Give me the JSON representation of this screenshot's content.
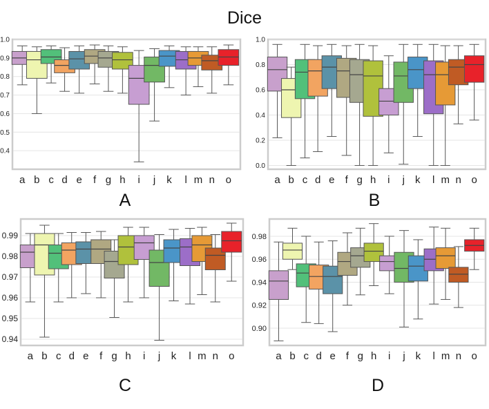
{
  "title": "Dice",
  "colors": [
    "#c8a0cc",
    "#eef5b0",
    "#52c07a",
    "#f2a461",
    "#5b92a8",
    "#b0a882",
    "#a5a890",
    "#b0c13c",
    "#c79ed2",
    "#72b865",
    "#4a95c8",
    "#9c6ec8",
    "#e69a36",
    "#c05b24",
    "#e8222a"
  ],
  "chart_data": [
    {
      "panel": "A",
      "type": "box",
      "categories": [
        "a",
        "b",
        "c",
        "d",
        "e",
        "f",
        "g",
        "h",
        "i",
        "j",
        "k",
        "l",
        "m",
        "n",
        "o"
      ],
      "ylim": [
        0.3,
        1.0
      ],
      "yticks": [
        0.4,
        0.5,
        0.6,
        0.7,
        0.8,
        0.9,
        1.0
      ],
      "ytick_labels": [
        "0.4",
        "0.5",
        "0.6",
        "0.7",
        "0.8",
        "0.9",
        "1.0"
      ],
      "grid": true,
      "boxes": [
        {
          "cat": "a",
          "whislo": 0.755,
          "q1": 0.865,
          "med": 0.9,
          "q3": 0.935,
          "whishi": 0.965
        },
        {
          "cat": "b",
          "whislo": 0.6,
          "q1": 0.79,
          "med": 0.89,
          "q3": 0.935,
          "whishi": 0.96
        },
        {
          "cat": "c",
          "whislo": 0.765,
          "q1": 0.87,
          "med": 0.905,
          "q3": 0.945,
          "whishi": 0.965
        },
        {
          "cat": "d",
          "whislo": 0.72,
          "q1": 0.82,
          "med": 0.86,
          "q3": 0.89,
          "whishi": 0.955
        },
        {
          "cat": "e",
          "whislo": 0.71,
          "q1": 0.84,
          "med": 0.895,
          "q3": 0.935,
          "whishi": 0.965
        },
        {
          "cat": "f",
          "whislo": 0.76,
          "q1": 0.87,
          "med": 0.91,
          "q3": 0.945,
          "whishi": 0.97
        },
        {
          "cat": "g",
          "whislo": 0.72,
          "q1": 0.85,
          "med": 0.9,
          "q3": 0.935,
          "whishi": 0.965
        },
        {
          "cat": "h",
          "whislo": 0.71,
          "q1": 0.84,
          "med": 0.89,
          "q3": 0.93,
          "whishi": 0.96
        },
        {
          "cat": "i",
          "whislo": 0.34,
          "q1": 0.65,
          "med": 0.79,
          "q3": 0.86,
          "whishi": 0.94
        },
        {
          "cat": "j",
          "whislo": 0.56,
          "q1": 0.77,
          "med": 0.86,
          "q3": 0.905,
          "whishi": 0.95
        },
        {
          "cat": "k",
          "whislo": 0.74,
          "q1": 0.855,
          "med": 0.91,
          "q3": 0.94,
          "whishi": 0.965
        },
        {
          "cat": "l",
          "whislo": 0.7,
          "q1": 0.84,
          "med": 0.89,
          "q3": 0.935,
          "whishi": 0.96
        },
        {
          "cat": "m",
          "whislo": 0.745,
          "q1": 0.86,
          "med": 0.9,
          "q3": 0.935,
          "whishi": 0.96
        },
        {
          "cat": "n",
          "whislo": 0.71,
          "q1": 0.835,
          "med": 0.885,
          "q3": 0.915,
          "whishi": 0.96
        },
        {
          "cat": "o",
          "whislo": 0.755,
          "q1": 0.86,
          "med": 0.905,
          "q3": 0.945,
          "whishi": 0.97
        }
      ]
    },
    {
      "panel": "B",
      "type": "box",
      "categories": [
        "a",
        "b",
        "c",
        "d",
        "e",
        "f",
        "g",
        "h",
        "i",
        "j",
        "k",
        "l",
        "m",
        "n",
        "o"
      ],
      "ylim": [
        -0.03,
        1.0
      ],
      "yticks": [
        0.0,
        0.2,
        0.4,
        0.6,
        0.8,
        1.0
      ],
      "ytick_labels": [
        "0.0",
        "0.2",
        "0.4",
        "0.6",
        "0.8",
        "1.0"
      ],
      "grid": true,
      "boxes": [
        {
          "cat": "a",
          "whislo": 0.22,
          "q1": 0.59,
          "med": 0.76,
          "q3": 0.86,
          "whishi": 0.96
        },
        {
          "cat": "b",
          "whislo": 0.0,
          "q1": 0.38,
          "med": 0.6,
          "q3": 0.69,
          "whishi": 0.78
        },
        {
          "cat": "c",
          "whislo": 0.06,
          "q1": 0.53,
          "med": 0.74,
          "q3": 0.84,
          "whishi": 0.96
        },
        {
          "cat": "d",
          "whislo": 0.11,
          "q1": 0.55,
          "med": 0.75,
          "q3": 0.84,
          "whishi": 0.95
        },
        {
          "cat": "e",
          "whislo": 0.23,
          "q1": 0.61,
          "med": 0.78,
          "q3": 0.87,
          "whishi": 0.96
        },
        {
          "cat": "f",
          "whislo": 0.08,
          "q1": 0.54,
          "med": 0.75,
          "q3": 0.85,
          "whishi": 0.95
        },
        {
          "cat": "g",
          "whislo": 0.0,
          "q1": 0.5,
          "med": 0.72,
          "q3": 0.84,
          "whishi": 0.96
        },
        {
          "cat": "h",
          "whislo": 0.0,
          "q1": 0.39,
          "med": 0.71,
          "q3": 0.83,
          "whishi": 0.95
        },
        {
          "cat": "i",
          "whislo": 0.1,
          "q1": 0.4,
          "med": 0.51,
          "q3": 0.61,
          "whishi": 0.87
        },
        {
          "cat": "j",
          "whislo": 0.01,
          "q1": 0.5,
          "med": 0.71,
          "q3": 0.82,
          "whishi": 0.96
        },
        {
          "cat": "k",
          "whislo": 0.23,
          "q1": 0.61,
          "med": 0.76,
          "q3": 0.86,
          "whishi": 0.96
        },
        {
          "cat": "l",
          "whislo": 0.0,
          "q1": 0.41,
          "med": 0.72,
          "q3": 0.83,
          "whishi": 0.96
        },
        {
          "cat": "m",
          "whislo": 0.0,
          "q1": 0.48,
          "med": 0.72,
          "q3": 0.82,
          "whishi": 0.95
        },
        {
          "cat": "n",
          "whislo": 0.33,
          "q1": 0.64,
          "med": 0.78,
          "q3": 0.84,
          "whishi": 0.95
        },
        {
          "cat": "o",
          "whislo": 0.36,
          "q1": 0.66,
          "med": 0.8,
          "q3": 0.87,
          "whishi": 0.96
        }
      ]
    },
    {
      "panel": "C",
      "type": "box",
      "categories": [
        "a",
        "b",
        "c",
        "d",
        "e",
        "f",
        "g",
        "h",
        "i",
        "j",
        "k",
        "l",
        "m",
        "n",
        "o"
      ],
      "ylim": [
        0.937,
        0.998
      ],
      "yticks": [
        0.94,
        0.95,
        0.96,
        0.97,
        0.98,
        0.99
      ],
      "ytick_labels": [
        "0.94",
        "0.95",
        "0.96",
        "0.97",
        "0.98",
        "0.99"
      ],
      "grid": true,
      "boxes": [
        {
          "cat": "a",
          "whislo": 0.958,
          "q1": 0.9745,
          "med": 0.982,
          "q3": 0.9855,
          "whishi": 0.991
        },
        {
          "cat": "b",
          "whislo": 0.941,
          "q1": 0.971,
          "med": 0.9855,
          "q3": 0.991,
          "whishi": 0.995
        },
        {
          "cat": "c",
          "whislo": 0.958,
          "q1": 0.974,
          "med": 0.9815,
          "q3": 0.9855,
          "whishi": 0.991
        },
        {
          "cat": "d",
          "whislo": 0.96,
          "q1": 0.976,
          "med": 0.983,
          "q3": 0.9865,
          "whishi": 0.9915
        },
        {
          "cat": "e",
          "whislo": 0.962,
          "q1": 0.9765,
          "med": 0.9835,
          "q3": 0.987,
          "whishi": 0.9915
        },
        {
          "cat": "f",
          "whislo": 0.96,
          "q1": 0.9765,
          "med": 0.9835,
          "q3": 0.988,
          "whishi": 0.992
        },
        {
          "cat": "g",
          "whislo": 0.9505,
          "q1": 0.9695,
          "med": 0.9775,
          "q3": 0.9825,
          "whishi": 0.988
        },
        {
          "cat": "h",
          "whislo": 0.958,
          "q1": 0.976,
          "med": 0.9845,
          "q3": 0.99,
          "whishi": 0.994
        },
        {
          "cat": "i",
          "whislo": 0.96,
          "q1": 0.9785,
          "med": 0.9865,
          "q3": 0.99,
          "whishi": 0.994
        },
        {
          "cat": "j",
          "whislo": 0.9395,
          "q1": 0.9655,
          "med": 0.977,
          "q3": 0.983,
          "whishi": 0.9905
        },
        {
          "cat": "k",
          "whislo": 0.9585,
          "q1": 0.977,
          "med": 0.984,
          "q3": 0.988,
          "whishi": 0.993
        },
        {
          "cat": "l",
          "whislo": 0.957,
          "q1": 0.9755,
          "med": 0.9845,
          "q3": 0.9885,
          "whishi": 0.9935
        },
        {
          "cat": "m",
          "whislo": 0.9615,
          "q1": 0.9775,
          "med": 0.9855,
          "q3": 0.99,
          "whishi": 0.994
        },
        {
          "cat": "n",
          "whislo": 0.958,
          "q1": 0.9735,
          "med": 0.9805,
          "q3": 0.984,
          "whishi": 0.9905
        },
        {
          "cat": "o",
          "whislo": 0.968,
          "q1": 0.982,
          "med": 0.9875,
          "q3": 0.992,
          "whishi": 0.996
        }
      ]
    },
    {
      "panel": "D",
      "type": "box",
      "categories": [
        "a",
        "b",
        "c",
        "d",
        "e",
        "f",
        "g",
        "h",
        "i",
        "j",
        "k",
        "l",
        "m",
        "n",
        "o"
      ],
      "ylim": [
        0.885,
        0.995
      ],
      "yticks": [
        0.9,
        0.92,
        0.94,
        0.96,
        0.98
      ],
      "ytick_labels": [
        "0.90",
        "0.92",
        "0.94",
        "0.96",
        "0.98"
      ],
      "grid": true,
      "boxes": [
        {
          "cat": "a",
          "whislo": 0.889,
          "q1": 0.925,
          "med": 0.941,
          "q3": 0.95,
          "whishi": 0.975
        },
        {
          "cat": "b",
          "whislo": 0.951,
          "q1": 0.96,
          "med": 0.968,
          "q3": 0.974,
          "whishi": 0.987
        },
        {
          "cat": "c",
          "whislo": 0.905,
          "q1": 0.936,
          "med": 0.948,
          "q3": 0.956,
          "whishi": 0.98
        },
        {
          "cat": "d",
          "whislo": 0.904,
          "q1": 0.934,
          "med": 0.945,
          "q3": 0.955,
          "whishi": 0.975
        },
        {
          "cat": "e",
          "whislo": 0.897,
          "q1": 0.93,
          "med": 0.945,
          "q3": 0.954,
          "whishi": 0.976
        },
        {
          "cat": "f",
          "whislo": 0.92,
          "q1": 0.946,
          "med": 0.958,
          "q3": 0.966,
          "whishi": 0.983
        },
        {
          "cat": "g",
          "whislo": 0.929,
          "q1": 0.953,
          "med": 0.963,
          "q3": 0.97,
          "whishi": 0.987
        },
        {
          "cat": "h",
          "whislo": 0.937,
          "q1": 0.958,
          "med": 0.967,
          "q3": 0.974,
          "whishi": 0.991
        },
        {
          "cat": "i",
          "whislo": 0.93,
          "q1": 0.95,
          "med": 0.958,
          "q3": 0.963,
          "whishi": 0.98
        },
        {
          "cat": "j",
          "whislo": 0.901,
          "q1": 0.94,
          "med": 0.952,
          "q3": 0.966,
          "whishi": 0.985
        },
        {
          "cat": "k",
          "whislo": 0.908,
          "q1": 0.941,
          "med": 0.954,
          "q3": 0.963,
          "whishi": 0.977
        },
        {
          "cat": "l",
          "whislo": 0.921,
          "q1": 0.95,
          "med": 0.96,
          "q3": 0.969,
          "whishi": 0.988
        },
        {
          "cat": "m",
          "whislo": 0.925,
          "q1": 0.952,
          "med": 0.963,
          "q3": 0.97,
          "whishi": 0.987
        },
        {
          "cat": "n",
          "whislo": 0.918,
          "q1": 0.94,
          "med": 0.947,
          "q3": 0.953,
          "whishi": 0.971
        },
        {
          "cat": "o",
          "whislo": 0.951,
          "q1": 0.967,
          "med": 0.972,
          "q3": 0.977,
          "whishi": 0.987
        }
      ]
    }
  ]
}
